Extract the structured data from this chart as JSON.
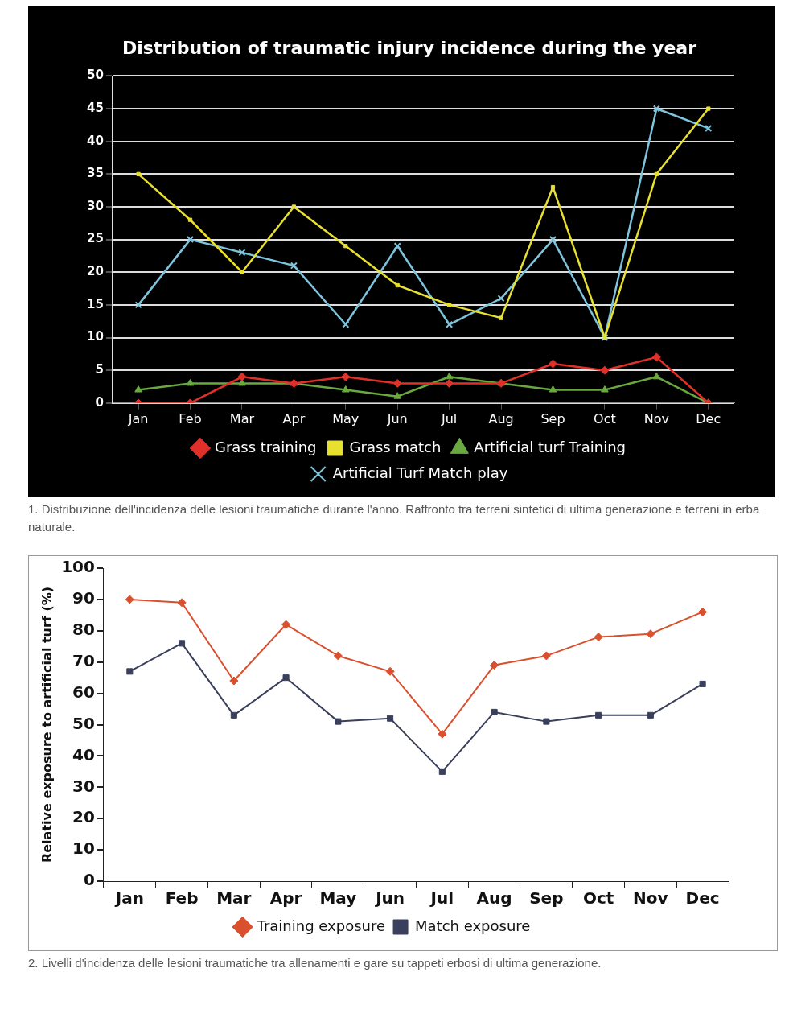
{
  "chart_data": [
    {
      "type": "line",
      "title": "Distribution of traumatic injury incidence during the year",
      "categories": [
        "Jan",
        "Feb",
        "Mar",
        "Apr",
        "May",
        "Jun",
        "Jul",
        "Aug",
        "Sep",
        "Oct",
        "Nov",
        "Dec"
      ],
      "series": [
        {
          "name": "Grass training",
          "color": "#e0302a",
          "marker": "diamond",
          "values": [
            0,
            0,
            4,
            3,
            4,
            3,
            3,
            3,
            6,
            5,
            7,
            0
          ]
        },
        {
          "name": "Grass match",
          "color": "#e8e030",
          "marker": "square",
          "values": [
            35,
            28,
            20,
            30,
            24,
            18,
            15,
            13,
            33,
            10,
            35,
            45
          ]
        },
        {
          "name": "Artificial turf Training",
          "color": "#6aa840",
          "marker": "triangle",
          "values": [
            2,
            3,
            3,
            3,
            2,
            1,
            4,
            3,
            2,
            2,
            4,
            0
          ]
        },
        {
          "name": "Artificial Turf Match play",
          "color": "#7ec4dc",
          "marker": "cross",
          "values": [
            15,
            25,
            23,
            21,
            12,
            24,
            12,
            16,
            25,
            10,
            45,
            42
          ]
        }
      ],
      "ylim": [
        0,
        50
      ],
      "yticks": [
        0,
        5,
        10,
        15,
        20,
        25,
        30,
        35,
        40,
        45,
        50
      ],
      "grid": "y",
      "legend": "bottom",
      "annotations": [
        "1. Distribuzione dell'incidenza delle lesioni traumatiche durante l'anno. Raffronto tra terreni sintetici di ultima generazione e terreni in erba naturale."
      ]
    },
    {
      "type": "line",
      "ylabel": "Relative exposure to artificial turf (%)",
      "categories": [
        "Jan",
        "Feb",
        "Mar",
        "Apr",
        "May",
        "Jun",
        "Jul",
        "Aug",
        "Sep",
        "Oct",
        "Nov",
        "Dec"
      ],
      "series": [
        {
          "name": "Training exposure",
          "color": "#d9502e",
          "marker": "diamond",
          "values": [
            90,
            89,
            64,
            82,
            72,
            67,
            47,
            69,
            72,
            78,
            79,
            86
          ]
        },
        {
          "name": "Match exposure",
          "color": "#3a3f5c",
          "marker": "square",
          "values": [
            67,
            76,
            53,
            65,
            51,
            52,
            35,
            54,
            51,
            53,
            53,
            63
          ]
        }
      ],
      "ylim": [
        0,
        100
      ],
      "yticks": [
        0,
        10,
        20,
        30,
        40,
        50,
        60,
        70,
        80,
        90,
        100
      ],
      "legend": "bottom",
      "annotations": [
        "2. Livelli d'incidenza delle lesioni traumatiche tra allenamenti e gare su tappeti erbosi di ultima generazione."
      ]
    }
  ]
}
